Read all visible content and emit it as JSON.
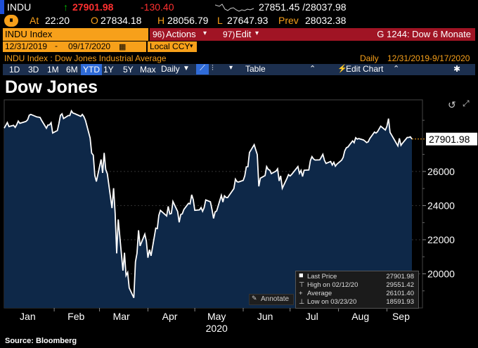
{
  "quote": {
    "ticker": "INDU",
    "up_arrow": "↑",
    "last": "27901.98",
    "change": "-130.40",
    "range": "27851.45 /28037.98",
    "at_label": "At",
    "time": "22:20",
    "open_label": "O",
    "open": "27834.18",
    "high_label": "H",
    "high": "28056.79",
    "low_label": "L",
    "low": "27647.93",
    "prev_label": "Prev",
    "prev": "28032.38",
    "icon_glyph": "⏸"
  },
  "toolbar": {
    "security": "INDU Index",
    "actions_num": "96)",
    "actions": "Actions",
    "edit_num": "97)",
    "edit": "Edit",
    "gp_code": "G 1244: Dow 6 Monate"
  },
  "settings": {
    "start_date": "12/31/2019",
    "end_date": "09/17/2020",
    "currency": "Local CCY",
    "security_desc": "INDU Index : Dow Jones Industrial Average",
    "periodicity": "Daily",
    "date_range": "12/31/2019-9/17/2020"
  },
  "range_buttons": [
    "1D",
    "3D",
    "1M",
    "6M",
    "YTD",
    "1Y",
    "5Y",
    "Max"
  ],
  "active_range": "YTD",
  "daily_label": "Daily",
  "table_label": "Table",
  "edit_chart_label": "Edit Chart",
  "colors": {
    "orange": "#f7a01a",
    "red_bar": "#a01424",
    "blue_bar": "#1c2f4e",
    "area_fill": "#0e2848",
    "up_green": "#00c000",
    "down_red": "#ff3030"
  },
  "chart_data": {
    "type": "area",
    "title": "Dow Jones",
    "x_tick_labels": [
      "Jan",
      "Feb",
      "Mar",
      "Apr",
      "May",
      "Jun",
      "Jul",
      "Aug",
      "Sep"
    ],
    "year_label": "2020",
    "ylim": [
      18000,
      30200
    ],
    "y_ticks": [
      20000,
      22000,
      24000,
      26000
    ],
    "last_price_tag": "27901.98",
    "x_start": "2019-12-31",
    "x_end": "2020-09-17",
    "series": [
      {
        "points": [
          [
            "2019-12-31",
            28538
          ],
          [
            "2020-01-02",
            28868
          ],
          [
            "2020-01-03",
            28634
          ],
          [
            "2020-01-06",
            28703
          ],
          [
            "2020-01-07",
            28583
          ],
          [
            "2020-01-08",
            28745
          ],
          [
            "2020-01-09",
            28957
          ],
          [
            "2020-01-10",
            28823
          ],
          [
            "2020-01-13",
            28907
          ],
          [
            "2020-01-14",
            28940
          ],
          [
            "2020-01-15",
            29030
          ],
          [
            "2020-01-16",
            29297
          ],
          [
            "2020-01-17",
            29348
          ],
          [
            "2020-01-21",
            29196
          ],
          [
            "2020-01-22",
            29186
          ],
          [
            "2020-01-23",
            29160
          ],
          [
            "2020-01-24",
            28989
          ],
          [
            "2020-01-27",
            28535
          ],
          [
            "2020-01-28",
            28723
          ],
          [
            "2020-01-29",
            28734
          ],
          [
            "2020-01-30",
            28859
          ],
          [
            "2020-01-31",
            28256
          ],
          [
            "2020-02-03",
            28399
          ],
          [
            "2020-02-04",
            28807
          ],
          [
            "2020-02-05",
            29290
          ],
          [
            "2020-02-06",
            29379
          ],
          [
            "2020-02-07",
            29102
          ],
          [
            "2020-02-10",
            29276
          ],
          [
            "2020-02-11",
            29276
          ],
          [
            "2020-02-12",
            29551
          ],
          [
            "2020-02-13",
            29423
          ],
          [
            "2020-02-14",
            29398
          ],
          [
            "2020-02-18",
            29232
          ],
          [
            "2020-02-19",
            29348
          ],
          [
            "2020-02-20",
            29219
          ],
          [
            "2020-02-21",
            28992
          ],
          [
            "2020-02-24",
            27961
          ],
          [
            "2020-02-25",
            27081
          ],
          [
            "2020-02-26",
            26957
          ],
          [
            "2020-02-27",
            25766
          ],
          [
            "2020-02-28",
            25409
          ],
          [
            "2020-03-02",
            26703
          ],
          [
            "2020-03-03",
            25917
          ],
          [
            "2020-03-04",
            27091
          ],
          [
            "2020-03-05",
            26121
          ],
          [
            "2020-03-06",
            25865
          ],
          [
            "2020-03-09",
            23851
          ],
          [
            "2020-03-10",
            25018
          ],
          [
            "2020-03-11",
            23553
          ],
          [
            "2020-03-12",
            21200
          ],
          [
            "2020-03-13",
            23185
          ],
          [
            "2020-03-16",
            20189
          ],
          [
            "2020-03-17",
            21237
          ],
          [
            "2020-03-18",
            19899
          ],
          [
            "2020-03-19",
            20087
          ],
          [
            "2020-03-20",
            19174
          ],
          [
            "2020-03-23",
            18592
          ],
          [
            "2020-03-24",
            20704
          ],
          [
            "2020-03-25",
            21201
          ],
          [
            "2020-03-26",
            22552
          ],
          [
            "2020-03-27",
            21637
          ],
          [
            "2020-03-30",
            22327
          ],
          [
            "2020-03-31",
            21917
          ],
          [
            "2020-04-01",
            20944
          ],
          [
            "2020-04-02",
            21413
          ],
          [
            "2020-04-03",
            21053
          ],
          [
            "2020-04-06",
            22680
          ],
          [
            "2020-04-07",
            22654
          ],
          [
            "2020-04-08",
            23434
          ],
          [
            "2020-04-09",
            23719
          ],
          [
            "2020-04-13",
            23390
          ],
          [
            "2020-04-14",
            23950
          ],
          [
            "2020-04-15",
            23505
          ],
          [
            "2020-04-16",
            23538
          ],
          [
            "2020-04-17",
            24242
          ],
          [
            "2020-04-20",
            23650
          ],
          [
            "2020-04-21",
            23019
          ],
          [
            "2020-04-22",
            23476
          ],
          [
            "2020-04-23",
            23515
          ],
          [
            "2020-04-24",
            23775
          ],
          [
            "2020-04-27",
            24134
          ],
          [
            "2020-04-28",
            24102
          ],
          [
            "2020-04-29",
            24634
          ],
          [
            "2020-04-30",
            24346
          ],
          [
            "2020-05-01",
            23724
          ],
          [
            "2020-05-04",
            23750
          ],
          [
            "2020-05-05",
            23883
          ],
          [
            "2020-05-06",
            23664
          ],
          [
            "2020-05-07",
            23876
          ],
          [
            "2020-05-08",
            24331
          ],
          [
            "2020-05-11",
            24222
          ],
          [
            "2020-05-12",
            23765
          ],
          [
            "2020-05-13",
            23248
          ],
          [
            "2020-05-14",
            23625
          ],
          [
            "2020-05-15",
            23685
          ],
          [
            "2020-05-18",
            24597
          ],
          [
            "2020-05-19",
            24207
          ],
          [
            "2020-05-20",
            24576
          ],
          [
            "2020-05-21",
            24474
          ],
          [
            "2020-05-22",
            24465
          ],
          [
            "2020-05-26",
            24995
          ],
          [
            "2020-05-27",
            25548
          ],
          [
            "2020-05-28",
            25401
          ],
          [
            "2020-05-29",
            25383
          ],
          [
            "2020-06-01",
            25475
          ],
          [
            "2020-06-02",
            25742
          ],
          [
            "2020-06-03",
            26270
          ],
          [
            "2020-06-04",
            26282
          ],
          [
            "2020-06-05",
            27111
          ],
          [
            "2020-06-08",
            27572
          ],
          [
            "2020-06-09",
            27272
          ],
          [
            "2020-06-10",
            26990
          ],
          [
            "2020-06-11",
            25128
          ],
          [
            "2020-06-12",
            25606
          ],
          [
            "2020-06-15",
            25763
          ],
          [
            "2020-06-16",
            26290
          ],
          [
            "2020-06-17",
            26120
          ],
          [
            "2020-06-18",
            26080
          ],
          [
            "2020-06-19",
            25871
          ],
          [
            "2020-06-22",
            26025
          ],
          [
            "2020-06-23",
            26156
          ],
          [
            "2020-06-24",
            25445
          ],
          [
            "2020-06-25",
            25745
          ],
          [
            "2020-06-26",
            25016
          ],
          [
            "2020-06-29",
            25596
          ],
          [
            "2020-06-30",
            25813
          ],
          [
            "2020-07-01",
            25735
          ],
          [
            "2020-07-02",
            25827
          ],
          [
            "2020-07-06",
            26287
          ],
          [
            "2020-07-07",
            25890
          ],
          [
            "2020-07-08",
            26067
          ],
          [
            "2020-07-09",
            25706
          ],
          [
            "2020-07-10",
            26075
          ],
          [
            "2020-07-13",
            26086
          ],
          [
            "2020-07-14",
            26643
          ],
          [
            "2020-07-15",
            26870
          ],
          [
            "2020-07-16",
            26734
          ],
          [
            "2020-07-17",
            26672
          ],
          [
            "2020-07-20",
            26681
          ],
          [
            "2020-07-21",
            26840
          ],
          [
            "2020-07-22",
            27005
          ],
          [
            "2020-07-23",
            26653
          ],
          [
            "2020-07-24",
            26470
          ],
          [
            "2020-07-27",
            26585
          ],
          [
            "2020-07-28",
            26379
          ],
          [
            "2020-07-29",
            26540
          ],
          [
            "2020-07-30",
            26314
          ],
          [
            "2020-07-31",
            26428
          ],
          [
            "2020-08-03",
            26664
          ],
          [
            "2020-08-04",
            26828
          ],
          [
            "2020-08-05",
            27202
          ],
          [
            "2020-08-06",
            27387
          ],
          [
            "2020-08-07",
            27433
          ],
          [
            "2020-08-10",
            27791
          ],
          [
            "2020-08-11",
            27687
          ],
          [
            "2020-08-12",
            27977
          ],
          [
            "2020-08-13",
            27897
          ],
          [
            "2020-08-14",
            27931
          ],
          [
            "2020-08-17",
            27845
          ],
          [
            "2020-08-18",
            27778
          ],
          [
            "2020-08-19",
            27693
          ],
          [
            "2020-08-20",
            27740
          ],
          [
            "2020-08-21",
            27930
          ],
          [
            "2020-08-24",
            28308
          ],
          [
            "2020-08-25",
            28249
          ],
          [
            "2020-08-26",
            28332
          ],
          [
            "2020-08-27",
            28493
          ],
          [
            "2020-08-28",
            28654
          ],
          [
            "2020-08-31",
            28430
          ],
          [
            "2020-09-01",
            28646
          ],
          [
            "2020-09-02",
            29100
          ],
          [
            "2020-09-03",
            28292
          ],
          [
            "2020-09-04",
            28134
          ],
          [
            "2020-09-08",
            27501
          ],
          [
            "2020-09-09",
            27941
          ],
          [
            "2020-09-10",
            27535
          ],
          [
            "2020-09-11",
            27666
          ],
          [
            "2020-09-14",
            27993
          ],
          [
            "2020-09-15",
            27996
          ],
          [
            "2020-09-16",
            28033
          ],
          [
            "2020-09-17",
            27902
          ]
        ]
      }
    ],
    "legend": {
      "placement": "bottom-right",
      "rows": [
        {
          "marker": "■",
          "label": "Last Price",
          "date": "",
          "value": "27901.98"
        },
        {
          "marker": "⊤",
          "label": "High on",
          "date": "02/12/20",
          "value": "29551.42"
        },
        {
          "marker": "+",
          "label": "Average",
          "date": "",
          "value": "26101.40"
        },
        {
          "marker": "⊥",
          "label": "Low on",
          "date": "03/23/20",
          "value": "18591.93"
        }
      ],
      "annotate_label": "Annotate"
    }
  },
  "source": "Source: Bloomberg"
}
